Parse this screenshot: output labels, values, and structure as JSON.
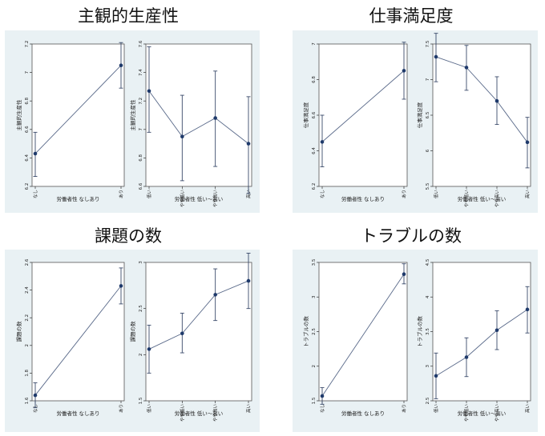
{
  "chart_data": [
    {
      "title": "主観的生産性",
      "left": {
        "type": "line",
        "xlabel": "労働者性 なしあり",
        "ylabel": "主観的生産性",
        "categories": [
          "なし",
          "あり"
        ],
        "values": [
          6.43,
          7.05
        ],
        "ci_low": [
          6.27,
          6.89
        ],
        "ci_high": [
          6.58,
          7.21
        ],
        "ylim": [
          6.2,
          7.2
        ],
        "yticks": [
          "6.2",
          "6.4",
          "6.6",
          "6.8",
          "7",
          "7.2"
        ]
      },
      "right": {
        "type": "line",
        "xlabel": "労働者性 低い〜高い",
        "ylabel": "主観的生産性",
        "categories": [
          "低い",
          "やや低い",
          "やや高い",
          "高い"
        ],
        "values": [
          7.27,
          6.95,
          7.08,
          6.9
        ],
        "ci_low": [
          6.98,
          6.64,
          6.74,
          6.55
        ],
        "ci_high": [
          7.58,
          7.24,
          7.41,
          7.23
        ],
        "ylim": [
          6.6,
          7.6
        ],
        "yticks": [
          "6.6",
          "6.8",
          "7",
          "7.2",
          "7.4",
          "7.6"
        ]
      }
    },
    {
      "title": "仕事満足度",
      "left": {
        "type": "line",
        "xlabel": "労働者性 なしあり",
        "ylabel": "仕事満足度",
        "categories": [
          "なし",
          "あり"
        ],
        "values": [
          6.45,
          6.85
        ],
        "ci_low": [
          6.31,
          6.69
        ],
        "ci_high": [
          6.6,
          7.01
        ],
        "ylim": [
          6.2,
          7
        ],
        "yticks": [
          "6.2",
          "6.4",
          "6.6",
          "6.8",
          "7"
        ]
      },
      "right": {
        "type": "line",
        "xlabel": "労働者性 低い〜高い",
        "ylabel": "仕事満足度",
        "categories": [
          "低い",
          "やや低い",
          "やや高い",
          "高い"
        ],
        "values": [
          7.32,
          7.17,
          6.7,
          6.12
        ],
        "ci_low": [
          6.97,
          6.85,
          6.37,
          5.76
        ],
        "ci_high": [
          7.65,
          7.48,
          7.04,
          6.47
        ],
        "ylim": [
          5.5,
          7.5
        ],
        "yticks": [
          "5.5",
          "6",
          "6.5",
          "7",
          "7.5"
        ]
      }
    },
    {
      "title": "課題の数",
      "left": {
        "type": "line",
        "xlabel": "労働者性 なしあり",
        "ylabel": "課題の数",
        "categories": [
          "なし",
          "あり"
        ],
        "values": [
          1.64,
          2.43
        ],
        "ci_low": [
          1.55,
          2.3
        ],
        "ci_high": [
          1.73,
          2.56
        ],
        "ylim": [
          1.6,
          2.6
        ],
        "yticks": [
          "1.6",
          "1.8",
          "2",
          "2.2",
          "2.4",
          "2.6"
        ]
      },
      "right": {
        "type": "line",
        "xlabel": "労働者性 低い〜高い",
        "ylabel": "課題の数",
        "categories": [
          "低い",
          "やや低い",
          "やや高い",
          "高い"
        ],
        "values": [
          2.06,
          2.23,
          2.65,
          2.8
        ],
        "ci_low": [
          1.8,
          2.02,
          2.37,
          2.5
        ],
        "ci_high": [
          2.32,
          2.45,
          2.93,
          3.1
        ],
        "ylim": [
          1.5,
          3
        ],
        "yticks": [
          "1.5",
          "2",
          "2.5",
          "3"
        ]
      }
    },
    {
      "title": "トラブルの数",
      "left": {
        "type": "line",
        "xlabel": "労働者性 なしあり",
        "ylabel": "トラブルの数",
        "categories": [
          "なし",
          "あり"
        ],
        "values": [
          1.57,
          3.33
        ],
        "ci_low": [
          1.45,
          3.19
        ],
        "ci_high": [
          1.69,
          3.48
        ],
        "ylim": [
          1.5,
          3.5
        ],
        "yticks": [
          "1.5",
          "2",
          "2.5",
          "3",
          "3.5"
        ]
      },
      "right": {
        "type": "line",
        "xlabel": "労働者性 低い〜高い",
        "ylabel": "トラブルの数",
        "categories": [
          "低い",
          "やや低い",
          "やや高い",
          "高い"
        ],
        "values": [
          2.86,
          3.13,
          3.52,
          3.82
        ],
        "ci_low": [
          2.53,
          2.85,
          3.24,
          3.48
        ],
        "ci_high": [
          3.19,
          3.41,
          3.8,
          4.15
        ],
        "ylim": [
          2.5,
          4.5
        ],
        "yticks": [
          "2.5",
          "3",
          "3.5",
          "4",
          "4.5"
        ]
      }
    }
  ]
}
